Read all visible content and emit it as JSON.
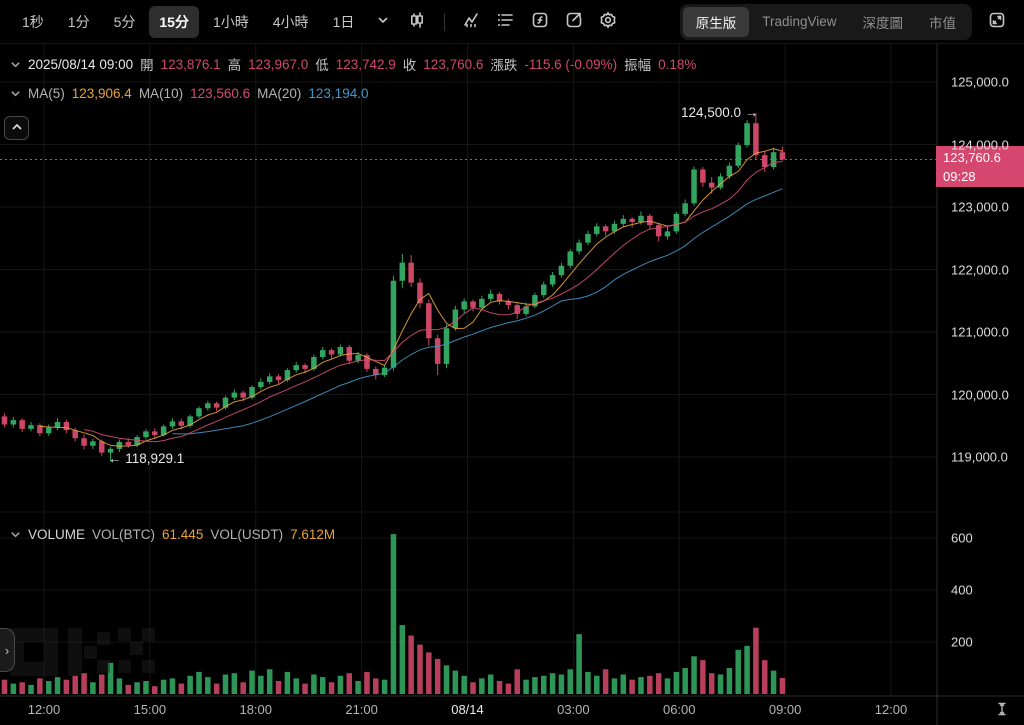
{
  "toolbar": {
    "timeframes": [
      {
        "label": "1秒",
        "selected": false
      },
      {
        "label": "1分",
        "selected": false
      },
      {
        "label": "5分",
        "selected": false
      },
      {
        "label": "15分",
        "selected": true
      },
      {
        "label": "1小時",
        "selected": false
      },
      {
        "label": "4小時",
        "selected": false
      },
      {
        "label": "1日",
        "selected": false
      }
    ],
    "icons": [
      "chevron-down-icon",
      "candle-style-icon",
      "indicator-icon",
      "layout-list-icon",
      "formula-icon",
      "share-icon",
      "settings-icon",
      "expand-icon"
    ],
    "view_tabs": [
      {
        "label": "原生版",
        "selected": true
      },
      {
        "label": "TradingView",
        "selected": false
      },
      {
        "label": "深度圖",
        "selected": false
      },
      {
        "label": "市值",
        "selected": false
      }
    ]
  },
  "ohlc": {
    "datetime": "2025/08/14 09:00",
    "open_label": "開",
    "open": "123,876.1",
    "high_label": "高",
    "high": "123,967.0",
    "low_label": "低",
    "low": "123,742.9",
    "close_label": "收",
    "close": "123,760.6",
    "change_label": "漲跌",
    "change": "-115.6 (-0.09%)",
    "amplitude_label": "振幅",
    "amplitude": "0.18%"
  },
  "ma": {
    "ma5_label": "MA(5)",
    "ma5": "123,906.4",
    "ma10_label": "MA(10)",
    "ma10": "123,560.6",
    "ma20_label": "MA(20)",
    "ma20": "123,194.0"
  },
  "annotations": {
    "high": "124,500.0 →",
    "low": "← 118,929.1"
  },
  "price_badge": {
    "price": "123,760.6",
    "time": "09:28"
  },
  "volume_header": {
    "title": "VOLUME",
    "btc_label": "VOL(BTC)",
    "btc": "61.445",
    "usdt_label": "VOL(USDT)",
    "usdt": "7.612M"
  },
  "colors": {
    "up": "#32a661",
    "down": "#cc4665",
    "badge": "#d6476f",
    "ma5": "#e9a23b",
    "ma10": "#d34d74",
    "ma20": "#4296c8",
    "grid": "#161616",
    "axis_line": "#2c2c2c",
    "dotted_price": "#d6476f"
  },
  "chart_data": {
    "type": "candlestick",
    "interval": "15分",
    "title": "BTC/USDT 15m candlestick with volume",
    "price_axis_labels": [
      "125,000.0",
      "124,000.0",
      "123,000.0",
      "122,000.0",
      "121,000.0",
      "120,000.0",
      "119,000.0"
    ],
    "volume_axis_labels": [
      "600",
      "400",
      "200"
    ],
    "time_axis_labels": [
      "12:00",
      "15:00",
      "18:00",
      "21:00",
      "08/14",
      "03:00",
      "06:00",
      "09:00",
      "12:00"
    ],
    "ylim": [
      118500,
      125300
    ],
    "volume_ylim": [
      0,
      700
    ],
    "high_point": 124500.0,
    "low_point": 118929.1,
    "current_price": 123760.6,
    "current_time": "09:28",
    "ma_periods": [
      5,
      10,
      20
    ],
    "candles_format": [
      "open",
      "high",
      "low",
      "close",
      "volume_btc"
    ],
    "candles": [
      [
        119650,
        119700,
        119480,
        119520,
        55
      ],
      [
        119520,
        119640,
        119470,
        119590,
        40
      ],
      [
        119590,
        119620,
        119400,
        119450,
        45
      ],
      [
        119450,
        119560,
        119410,
        119510,
        35
      ],
      [
        119510,
        119540,
        119330,
        119380,
        60
      ],
      [
        119380,
        119520,
        119340,
        119470,
        50
      ],
      [
        119470,
        119620,
        119430,
        119560,
        65
      ],
      [
        119560,
        119600,
        119380,
        119430,
        55
      ],
      [
        119430,
        119470,
        119250,
        119300,
        70
      ],
      [
        119300,
        119360,
        119120,
        119180,
        80
      ],
      [
        119180,
        119290,
        119130,
        119250,
        45
      ],
      [
        119250,
        119280,
        119020,
        119070,
        75
      ],
      [
        119070,
        119160,
        118929.1,
        119130,
        120
      ],
      [
        119130,
        119280,
        119080,
        119240,
        60
      ],
      [
        119240,
        119300,
        119150,
        119190,
        35
      ],
      [
        119190,
        119350,
        119160,
        119320,
        45
      ],
      [
        119320,
        119450,
        119280,
        119410,
        50
      ],
      [
        119410,
        119460,
        119300,
        119350,
        30
      ],
      [
        119350,
        119520,
        119330,
        119490,
        55
      ],
      [
        119490,
        119620,
        119450,
        119570,
        60
      ],
      [
        119570,
        119610,
        119440,
        119500,
        40
      ],
      [
        119500,
        119680,
        119470,
        119650,
        70
      ],
      [
        119650,
        119810,
        119620,
        119780,
        85
      ],
      [
        119780,
        119900,
        119740,
        119860,
        65
      ],
      [
        119860,
        119890,
        119730,
        119790,
        40
      ],
      [
        119790,
        119980,
        119760,
        119950,
        75
      ],
      [
        119950,
        120080,
        119910,
        120030,
        80
      ],
      [
        120030,
        120060,
        119890,
        119950,
        45
      ],
      [
        119950,
        120150,
        119920,
        120120,
        90
      ],
      [
        120120,
        120260,
        120080,
        120200,
        70
      ],
      [
        120200,
        120340,
        120160,
        120290,
        95
      ],
      [
        120290,
        120330,
        120170,
        120230,
        50
      ],
      [
        120230,
        120420,
        120200,
        120390,
        85
      ],
      [
        120390,
        120520,
        120350,
        120470,
        60
      ],
      [
        120470,
        120500,
        120340,
        120410,
        40
      ],
      [
        120410,
        120640,
        120380,
        120600,
        75
      ],
      [
        120600,
        120760,
        120560,
        120710,
        65
      ],
      [
        120710,
        120740,
        120570,
        120640,
        45
      ],
      [
        120640,
        120800,
        120610,
        120760,
        70
      ],
      [
        120760,
        120790,
        120480,
        120540,
        80
      ],
      [
        120540,
        120680,
        120500,
        120630,
        50
      ],
      [
        120630,
        120660,
        120360,
        120410,
        85
      ],
      [
        120410,
        120450,
        120240,
        120310,
        60
      ],
      [
        120310,
        120470,
        120280,
        120430,
        55
      ],
      [
        120430,
        121900,
        120380,
        121820,
        615
      ],
      [
        121820,
        122250,
        121700,
        122110,
        265
      ],
      [
        122110,
        122230,
        121720,
        121790,
        225
      ],
      [
        121790,
        121860,
        121380,
        121460,
        190
      ],
      [
        121460,
        121520,
        120780,
        120900,
        160
      ],
      [
        120900,
        120960,
        120310,
        120490,
        135
      ],
      [
        120490,
        121120,
        120420,
        121060,
        110
      ],
      [
        121060,
        121420,
        121020,
        121360,
        90
      ],
      [
        121360,
        121540,
        121300,
        121490,
        70
      ],
      [
        121490,
        121520,
        121330,
        121390,
        45
      ],
      [
        121390,
        121580,
        121350,
        121530,
        60
      ],
      [
        121530,
        121680,
        121490,
        121610,
        75
      ],
      [
        121610,
        121640,
        121440,
        121490,
        50
      ],
      [
        121490,
        121530,
        121360,
        121430,
        40
      ],
      [
        121430,
        121460,
        121210,
        121290,
        95
      ],
      [
        121290,
        121470,
        121250,
        121410,
        55
      ],
      [
        121410,
        121630,
        121380,
        121590,
        65
      ],
      [
        121590,
        121810,
        121550,
        121760,
        70
      ],
      [
        121760,
        121960,
        121720,
        121910,
        80
      ],
      [
        121910,
        122110,
        121870,
        122060,
        75
      ],
      [
        122060,
        122330,
        122020,
        122290,
        95
      ],
      [
        122290,
        122480,
        122240,
        122430,
        230
      ],
      [
        122430,
        122620,
        122390,
        122570,
        85
      ],
      [
        122570,
        122740,
        122530,
        122690,
        70
      ],
      [
        122690,
        122720,
        122540,
        122610,
        95
      ],
      [
        122610,
        122780,
        122570,
        122730,
        60
      ],
      [
        122730,
        122870,
        122690,
        122810,
        75
      ],
      [
        122810,
        122840,
        122670,
        122760,
        55
      ],
      [
        122760,
        122930,
        122720,
        122860,
        65
      ],
      [
        122860,
        122890,
        122640,
        122710,
        70
      ],
      [
        122710,
        122740,
        122450,
        122530,
        80
      ],
      [
        122530,
        122680,
        122480,
        122610,
        60
      ],
      [
        122610,
        122920,
        122570,
        122890,
        85
      ],
      [
        122890,
        123120,
        122850,
        123060,
        100
      ],
      [
        123060,
        123650,
        123020,
        123600,
        145
      ],
      [
        123600,
        123640,
        123320,
        123390,
        130
      ],
      [
        123390,
        123480,
        123210,
        123310,
        80
      ],
      [
        123310,
        123540,
        123280,
        123490,
        75
      ],
      [
        123490,
        123710,
        123450,
        123660,
        100
      ],
      [
        123660,
        124030,
        123620,
        123990,
        170
      ],
      [
        123990,
        124390,
        123950,
        124340,
        185
      ],
      [
        124340,
        124500,
        123760,
        123830,
        255
      ],
      [
        123830,
        123900,
        123560,
        123640,
        130
      ],
      [
        123640,
        123950,
        123600,
        123876,
        90
      ],
      [
        123876.1,
        123967.0,
        123742.9,
        123760.6,
        61.445
      ]
    ]
  }
}
